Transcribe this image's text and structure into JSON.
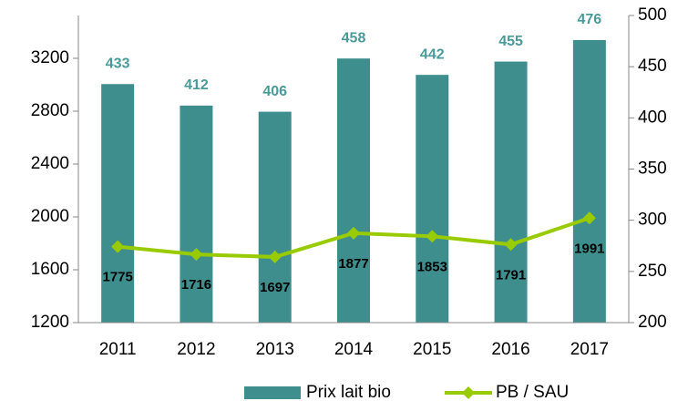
{
  "chart_data": {
    "type": "bar-line",
    "categories": [
      "2011",
      "2012",
      "2013",
      "2014",
      "2015",
      "2016",
      "2017"
    ],
    "series": [
      {
        "name": "Prix lait bio",
        "type": "bar",
        "axis": "y2",
        "color": "#3e8e8e",
        "values": [
          433,
          412,
          406,
          458,
          442,
          455,
          476
        ]
      },
      {
        "name": "PB / SAU",
        "type": "line",
        "axis": "y",
        "color": "#99cc00",
        "values": [
          1775,
          1716,
          1697,
          1877,
          1853,
          1791,
          1991
        ]
      }
    ],
    "ylim": [
      1200,
      3524
    ],
    "yticks": [
      1200,
      1600,
      2000,
      2400,
      2800,
      3200
    ],
    "y2lim": [
      200,
      500
    ],
    "y2ticks": [
      200,
      250,
      300,
      350,
      400,
      450,
      500
    ],
    "legend": "bottom"
  }
}
